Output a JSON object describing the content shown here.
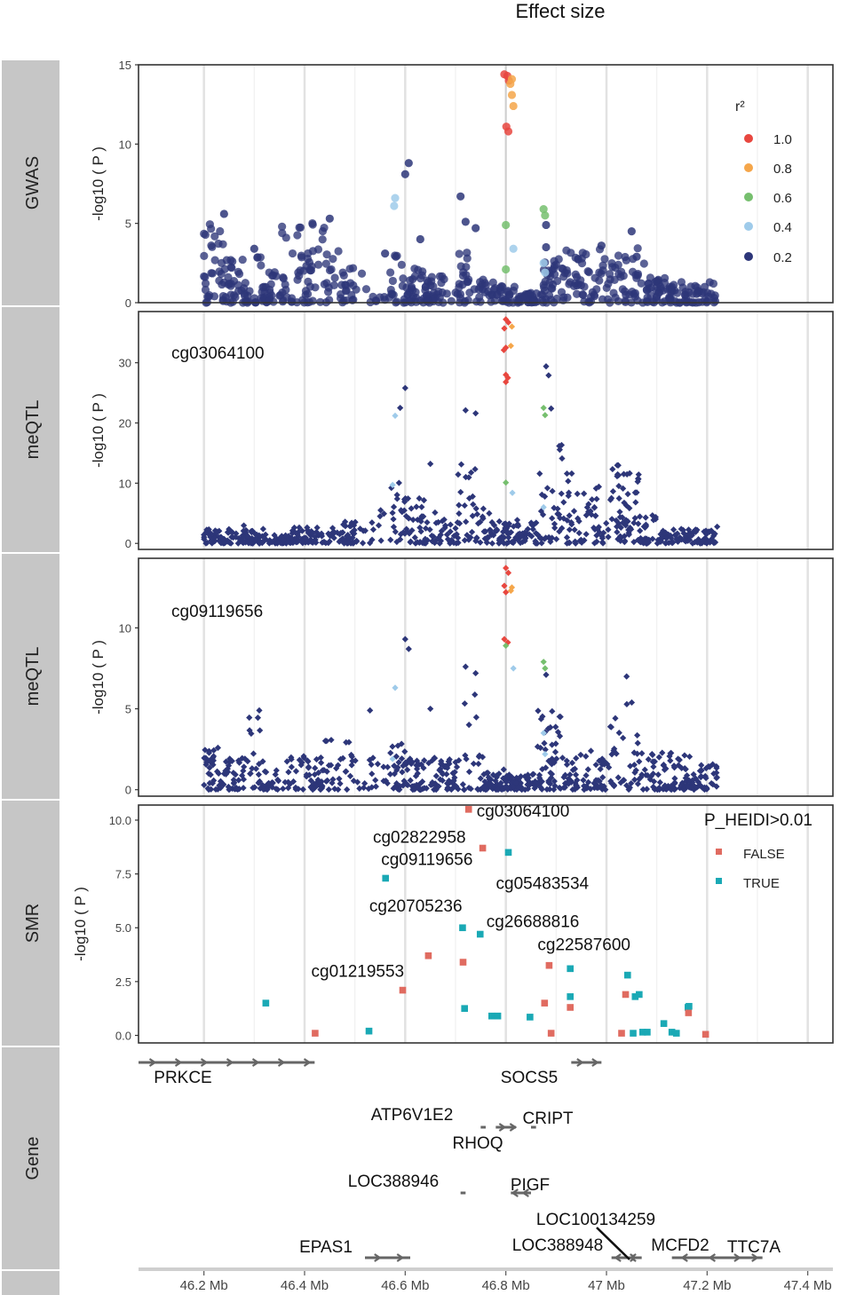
{
  "figure": {
    "title": "Effect size",
    "x_axis": {
      "unit": "Mb",
      "ticks": [
        "46.2 Mb",
        "46.4 Mb",
        "46.6 Mb",
        "46.8 Mb",
        "47 Mb",
        "47.2 Mb",
        "47.4 Mb"
      ],
      "tick_values": [
        46.2,
        46.4,
        46.6,
        46.8,
        47.0,
        47.2,
        47.4
      ]
    },
    "colors": {
      "r2_1.0": "#e8473f",
      "r2_0.8": "#f5a64a",
      "r2_0.6": "#76bf6e",
      "r2_0.4": "#9fcbea",
      "r2_0.2": "#2d3679",
      "false": "#e06b60",
      "true": "#1aa9b5",
      "strip": "#c6c6c6",
      "gene": "#666666"
    }
  },
  "chart_data": [
    {
      "type": "scatter",
      "panel": "GWAS",
      "ylabel": "-log10 ( P )",
      "ylim": [
        0,
        15
      ],
      "yticks": [
        "0",
        "5",
        "10",
        "15"
      ],
      "legend": {
        "title": "r²",
        "placement": "top-right",
        "entries": [
          "1.0",
          "0.8",
          "0.6",
          "0.4",
          "0.2"
        ]
      },
      "lead_snp_position": 46.8,
      "highlight_points": [
        {
          "x": 46.797,
          "y": 14.4,
          "r2": "1.0"
        },
        {
          "x": 46.803,
          "y": 14.3,
          "r2": "1.0"
        },
        {
          "x": 46.806,
          "y": 14.0,
          "r2": "1.0"
        },
        {
          "x": 46.801,
          "y": 11.1,
          "r2": "1.0"
        },
        {
          "x": 46.805,
          "y": 10.8,
          "r2": "1.0"
        },
        {
          "x": 46.809,
          "y": 13.8,
          "r2": "0.8"
        },
        {
          "x": 46.812,
          "y": 13.1,
          "r2": "0.8"
        },
        {
          "x": 46.815,
          "y": 12.4,
          "r2": "0.8"
        },
        {
          "x": 46.812,
          "y": 14.1,
          "r2": "0.8"
        },
        {
          "x": 46.8,
          "y": 4.9,
          "r2": "0.6"
        },
        {
          "x": 46.8,
          "y": 2.1,
          "r2": "0.6"
        },
        {
          "x": 46.875,
          "y": 5.9,
          "r2": "0.6"
        },
        {
          "x": 46.878,
          "y": 5.5,
          "r2": "0.6"
        },
        {
          "x": 46.58,
          "y": 6.6,
          "r2": "0.4"
        },
        {
          "x": 46.578,
          "y": 6.1,
          "r2": "0.4"
        },
        {
          "x": 46.815,
          "y": 3.4,
          "r2": "0.4"
        },
        {
          "x": 46.875,
          "y": 2.5,
          "r2": "0.4"
        },
        {
          "x": 46.878,
          "y": 1.9,
          "r2": "0.4"
        }
      ],
      "background_points": [
        {
          "x": 46.6,
          "y": 8.1
        },
        {
          "x": 46.607,
          "y": 8.8
        },
        {
          "x": 46.71,
          "y": 6.7
        },
        {
          "x": 46.72,
          "y": 5.1
        },
        {
          "x": 46.74,
          "y": 4.7
        },
        {
          "x": 46.88,
          "y": 4.9
        },
        {
          "x": 46.88,
          "y": 3.5
        },
        {
          "x": 47.05,
          "y": 4.5
        },
        {
          "x": 46.45,
          "y": 5.3
        },
        {
          "x": 46.24,
          "y": 5.6
        },
        {
          "x": 46.63,
          "y": 4.0
        },
        {
          "x": 46.56,
          "y": 3.1
        },
        {
          "x": 46.3,
          "y": 3.4
        },
        {
          "x": 46.99,
          "y": 3.6
        },
        {
          "x": 47.06,
          "y": 2.9
        }
      ],
      "density_profile": [
        {
          "x": 46.22,
          "ymax": 5.0
        },
        {
          "x": 46.26,
          "ymax": 4.2
        },
        {
          "x": 46.3,
          "ymax": 3.3
        },
        {
          "x": 46.33,
          "ymax": 2.2
        },
        {
          "x": 46.38,
          "ymax": 5.0
        },
        {
          "x": 46.42,
          "ymax": 5.4
        },
        {
          "x": 46.46,
          "ymax": 3.6
        },
        {
          "x": 46.5,
          "ymax": 2.2
        },
        {
          "x": 46.55,
          "ymax": 0.6
        },
        {
          "x": 46.58,
          "ymax": 3.5
        },
        {
          "x": 46.62,
          "ymax": 2.2
        },
        {
          "x": 46.67,
          "ymax": 1.7
        },
        {
          "x": 46.72,
          "ymax": 3.2
        },
        {
          "x": 46.76,
          "ymax": 1.6
        },
        {
          "x": 46.8,
          "ymax": 1.1
        },
        {
          "x": 46.85,
          "ymax": 0.7
        },
        {
          "x": 46.9,
          "ymax": 2.9
        },
        {
          "x": 46.94,
          "ymax": 3.4
        },
        {
          "x": 46.98,
          "ymax": 3.7
        },
        {
          "x": 47.02,
          "ymax": 3.1
        },
        {
          "x": 47.06,
          "ymax": 3.5
        },
        {
          "x": 47.1,
          "ymax": 1.7
        },
        {
          "x": 47.14,
          "ymax": 1.3
        },
        {
          "x": 47.18,
          "ymax": 1.1
        },
        {
          "x": 47.21,
          "ymax": 1.3
        }
      ]
    },
    {
      "type": "scatter",
      "panel": "meQTL",
      "probe": "cg03064100",
      "ylabel": "-log10 ( P )",
      "ylim": [
        -1,
        38.5
      ],
      "yticks": [
        "0",
        "10",
        "20",
        "30"
      ],
      "lead_snp_position": 46.8,
      "highlight_points": [
        {
          "x": 46.8,
          "y": 37.2,
          "r2": "1.0"
        },
        {
          "x": 46.805,
          "y": 36.7,
          "r2": "1.0"
        },
        {
          "x": 46.797,
          "y": 35.7,
          "r2": "1.0"
        },
        {
          "x": 46.8,
          "y": 32.5,
          "r2": "1.0"
        },
        {
          "x": 46.796,
          "y": 32.1,
          "r2": "1.0"
        },
        {
          "x": 46.8,
          "y": 28.0,
          "r2": "1.0"
        },
        {
          "x": 46.804,
          "y": 27.5,
          "r2": "1.0"
        },
        {
          "x": 46.8,
          "y": 26.8,
          "r2": "1.0"
        },
        {
          "x": 46.812,
          "y": 36.0,
          "r2": "0.8"
        },
        {
          "x": 46.81,
          "y": 32.8,
          "r2": "0.8"
        },
        {
          "x": 46.8,
          "y": 10.1,
          "r2": "0.6"
        },
        {
          "x": 46.875,
          "y": 22.5,
          "r2": "0.6"
        },
        {
          "x": 46.878,
          "y": 21.3,
          "r2": "0.6"
        },
        {
          "x": 46.58,
          "y": 21.2,
          "r2": "0.4"
        },
        {
          "x": 46.575,
          "y": 9.7,
          "r2": "0.4"
        },
        {
          "x": 46.813,
          "y": 8.4,
          "r2": "0.4"
        },
        {
          "x": 46.875,
          "y": 6.0,
          "r2": "0.4"
        }
      ],
      "background_points": [
        {
          "x": 46.6,
          "y": 25.8
        },
        {
          "x": 46.59,
          "y": 22.5
        },
        {
          "x": 46.72,
          "y": 22.1
        },
        {
          "x": 46.74,
          "y": 21.6
        },
        {
          "x": 46.88,
          "y": 29.4
        },
        {
          "x": 46.885,
          "y": 27.9
        },
        {
          "x": 46.89,
          "y": 22.4
        },
        {
          "x": 46.65,
          "y": 13.2
        },
        {
          "x": 46.55,
          "y": 4.5
        },
        {
          "x": 46.7,
          "y": 2.5
        }
      ],
      "density_profile": [
        {
          "x": 46.22,
          "ymax": 2.4
        },
        {
          "x": 46.26,
          "ymax": 3.0
        },
        {
          "x": 46.3,
          "ymax": 2.5
        },
        {
          "x": 46.35,
          "ymax": 1.7
        },
        {
          "x": 46.4,
          "ymax": 2.8
        },
        {
          "x": 46.45,
          "ymax": 2.6
        },
        {
          "x": 46.5,
          "ymax": 3.8
        },
        {
          "x": 46.58,
          "ymax": 10.2
        },
        {
          "x": 46.63,
          "ymax": 8.0
        },
        {
          "x": 46.69,
          "ymax": 4.0
        },
        {
          "x": 46.72,
          "ymax": 14.0
        },
        {
          "x": 46.76,
          "ymax": 6.4
        },
        {
          "x": 46.8,
          "ymax": 4.0
        },
        {
          "x": 46.85,
          "ymax": 3.5
        },
        {
          "x": 46.88,
          "ymax": 18.0
        },
        {
          "x": 46.9,
          "ymax": 18.5
        },
        {
          "x": 46.94,
          "ymax": 12.0
        },
        {
          "x": 46.98,
          "ymax": 10.5
        },
        {
          "x": 47.02,
          "ymax": 13.5
        },
        {
          "x": 47.05,
          "ymax": 13.0
        },
        {
          "x": 47.08,
          "ymax": 5.0
        },
        {
          "x": 47.12,
          "ymax": 2.4
        },
        {
          "x": 47.18,
          "ymax": 2.4
        },
        {
          "x": 47.21,
          "ymax": 2.8
        }
      ]
    },
    {
      "type": "scatter",
      "panel": "meQTL",
      "probe": "cg09119656",
      "ylabel": "-log10 ( P )",
      "ylim": [
        -0.4,
        14.3
      ],
      "yticks": [
        "0",
        "5",
        "10"
      ],
      "lead_snp_position": 46.8,
      "highlight_points": [
        {
          "x": 46.8,
          "y": 13.7,
          "r2": "1.0"
        },
        {
          "x": 46.805,
          "y": 13.4,
          "r2": "1.0"
        },
        {
          "x": 46.797,
          "y": 12.6,
          "r2": "1.0"
        },
        {
          "x": 46.8,
          "y": 12.2,
          "r2": "1.0"
        },
        {
          "x": 46.797,
          "y": 9.3,
          "r2": "1.0"
        },
        {
          "x": 46.804,
          "y": 9.1,
          "r2": "1.0"
        },
        {
          "x": 46.812,
          "y": 12.5,
          "r2": "0.8"
        },
        {
          "x": 46.81,
          "y": 12.3,
          "r2": "0.8"
        },
        {
          "x": 46.8,
          "y": 8.9,
          "r2": "0.6"
        },
        {
          "x": 46.875,
          "y": 7.9,
          "r2": "0.6"
        },
        {
          "x": 46.878,
          "y": 7.5,
          "r2": "0.6"
        },
        {
          "x": 46.58,
          "y": 6.3,
          "r2": "0.4"
        },
        {
          "x": 46.575,
          "y": 1.9,
          "r2": "0.4"
        },
        {
          "x": 46.815,
          "y": 7.5,
          "r2": "0.4"
        },
        {
          "x": 46.875,
          "y": 3.5,
          "r2": "0.4"
        },
        {
          "x": 46.878,
          "y": 2.2,
          "r2": "0.4"
        }
      ],
      "background_points": [
        {
          "x": 46.6,
          "y": 9.3
        },
        {
          "x": 46.607,
          "y": 8.7
        },
        {
          "x": 46.72,
          "y": 7.6
        },
        {
          "x": 46.74,
          "y": 7.2
        },
        {
          "x": 47.04,
          "y": 7.0
        },
        {
          "x": 46.65,
          "y": 5.0
        },
        {
          "x": 46.53,
          "y": 4.9
        },
        {
          "x": 46.31,
          "y": 4.9
        },
        {
          "x": 46.88,
          "y": 7.1
        },
        {
          "x": 46.7,
          "y": 1.7
        }
      ],
      "density_profile": [
        {
          "x": 46.22,
          "ymax": 2.6
        },
        {
          "x": 46.26,
          "ymax": 2.2
        },
        {
          "x": 46.3,
          "ymax": 4.6
        },
        {
          "x": 46.34,
          "ymax": 1.2
        },
        {
          "x": 46.38,
          "ymax": 2.2
        },
        {
          "x": 46.42,
          "ymax": 2.0
        },
        {
          "x": 46.46,
          "ymax": 3.4
        },
        {
          "x": 46.52,
          "ymax": 3.5
        },
        {
          "x": 46.58,
          "ymax": 3.5
        },
        {
          "x": 46.62,
          "ymax": 2.3
        },
        {
          "x": 46.68,
          "ymax": 2.0
        },
        {
          "x": 46.73,
          "ymax": 6.0
        },
        {
          "x": 46.78,
          "ymax": 1.3
        },
        {
          "x": 46.83,
          "ymax": 1.0
        },
        {
          "x": 46.89,
          "ymax": 5.4
        },
        {
          "x": 46.93,
          "ymax": 2.3
        },
        {
          "x": 46.98,
          "ymax": 2.4
        },
        {
          "x": 47.02,
          "ymax": 4.8
        },
        {
          "x": 47.05,
          "ymax": 5.6
        },
        {
          "x": 47.08,
          "ymax": 2.3
        },
        {
          "x": 47.12,
          "ymax": 2.3
        },
        {
          "x": 47.16,
          "ymax": 2.2
        },
        {
          "x": 47.2,
          "ymax": 1.6
        }
      ]
    },
    {
      "type": "scatter",
      "panel": "SMR",
      "ylabel": "-log10 ( P )",
      "ylim": [
        -0.35,
        10.7
      ],
      "yticks": [
        "0.0",
        "2.5",
        "5.0",
        "7.5",
        "10.0"
      ],
      "legend": {
        "title": "P_HEIDI>0.01",
        "placement": "top-right",
        "entries": [
          "FALSE",
          "TRUE"
        ]
      },
      "points": [
        {
          "x": 46.323,
          "y": 1.5,
          "heidi": "TRUE"
        },
        {
          "x": 46.421,
          "y": 0.1,
          "heidi": "FALSE"
        },
        {
          "x": 46.528,
          "y": 0.2,
          "heidi": "TRUE"
        },
        {
          "x": 46.561,
          "y": 7.3,
          "heidi": "TRUE",
          "label": "cg09119656"
        },
        {
          "x": 46.595,
          "y": 2.1,
          "heidi": "FALSE",
          "label": "cg01219553"
        },
        {
          "x": 46.646,
          "y": 3.7,
          "heidi": "FALSE"
        },
        {
          "x": 46.714,
          "y": 5.0,
          "heidi": "TRUE",
          "label": "cg20705236"
        },
        {
          "x": 46.715,
          "y": 3.4,
          "heidi": "FALSE"
        },
        {
          "x": 46.718,
          "y": 1.25,
          "heidi": "TRUE"
        },
        {
          "x": 46.726,
          "y": 10.5,
          "heidi": "FALSE",
          "label": "cg03064100"
        },
        {
          "x": 46.749,
          "y": 4.7,
          "heidi": "TRUE",
          "label": "cg26688816"
        },
        {
          "x": 46.754,
          "y": 8.7,
          "heidi": "FALSE",
          "label": "cg02822958"
        },
        {
          "x": 46.772,
          "y": 0.9,
          "heidi": "TRUE"
        },
        {
          "x": 46.784,
          "y": 0.9,
          "heidi": "TRUE"
        },
        {
          "x": 46.805,
          "y": 8.5,
          "heidi": "TRUE",
          "label": "cg05483534"
        },
        {
          "x": 46.848,
          "y": 0.85,
          "heidi": "TRUE"
        },
        {
          "x": 46.877,
          "y": 1.5,
          "heidi": "FALSE"
        },
        {
          "x": 46.886,
          "y": 3.25,
          "heidi": "FALSE",
          "label": "cg22587600"
        },
        {
          "x": 46.89,
          "y": 0.1,
          "heidi": "FALSE"
        },
        {
          "x": 46.928,
          "y": 3.1,
          "heidi": "TRUE"
        },
        {
          "x": 46.928,
          "y": 1.8,
          "heidi": "TRUE"
        },
        {
          "x": 46.928,
          "y": 1.3,
          "heidi": "FALSE"
        },
        {
          "x": 47.03,
          "y": 0.1,
          "heidi": "FALSE"
        },
        {
          "x": 47.038,
          "y": 1.9,
          "heidi": "FALSE"
        },
        {
          "x": 47.042,
          "y": 2.8,
          "heidi": "TRUE"
        },
        {
          "x": 47.053,
          "y": 0.1,
          "heidi": "TRUE"
        },
        {
          "x": 47.057,
          "y": 1.8,
          "heidi": "TRUE"
        },
        {
          "x": 47.065,
          "y": 1.9,
          "heidi": "TRUE"
        },
        {
          "x": 47.072,
          "y": 0.15,
          "heidi": "TRUE"
        },
        {
          "x": 47.081,
          "y": 0.15,
          "heidi": "TRUE"
        },
        {
          "x": 47.114,
          "y": 0.55,
          "heidi": "TRUE"
        },
        {
          "x": 47.13,
          "y": 0.15,
          "heidi": "TRUE"
        },
        {
          "x": 47.139,
          "y": 0.1,
          "heidi": "TRUE"
        },
        {
          "x": 47.162,
          "y": 1.3,
          "heidi": "TRUE"
        },
        {
          "x": 47.163,
          "y": 1.05,
          "heidi": "FALSE"
        },
        {
          "x": 47.164,
          "y": 1.35,
          "heidi": "TRUE"
        },
        {
          "x": 47.197,
          "y": 0.05,
          "heidi": "FALSE"
        }
      ]
    }
  ],
  "panels": [
    "GWAS",
    "meQTL",
    "meQTL",
    "SMR",
    "Gene"
  ],
  "genes": [
    {
      "name": "PRKCE",
      "start": 46.0,
      "end": 46.42,
      "strand": "+",
      "row": 1
    },
    {
      "name": "SOCS5",
      "start": 46.93,
      "end": 46.99,
      "strand": "+",
      "row": 1
    },
    {
      "name": "ATP6V1E2",
      "start": 46.75,
      "end": 46.76,
      "strand": "-",
      "row": 2
    },
    {
      "name": "RHOQ",
      "start": 46.78,
      "end": 46.82,
      "strand": "+",
      "row": 2
    },
    {
      "name": "CRIPT",
      "start": 46.85,
      "end": 46.86,
      "strand": "+",
      "row": 2
    },
    {
      "name": "LOC388946",
      "start": 46.71,
      "end": 46.72,
      "strand": "+",
      "row": 3
    },
    {
      "name": "PIGF",
      "start": 46.81,
      "end": 46.85,
      "strand": "-",
      "row": 3
    },
    {
      "name": "LOC100134259",
      "start": 47.01,
      "end": 47.07,
      "strand": "-",
      "row": 4
    },
    {
      "name": "EPAS1",
      "start": 46.52,
      "end": 46.61,
      "strand": "+",
      "row": 4
    },
    {
      "name": "LOC388948",
      "start": 47.04,
      "end": 47.06,
      "strand": "+",
      "row": 4
    },
    {
      "name": "MCFD2",
      "start": 47.13,
      "end": 47.24,
      "strand": "-",
      "row": 4
    },
    {
      "name": "TTC7A",
      "start": 47.24,
      "end": 47.31,
      "strand": "+",
      "row": 4
    }
  ]
}
